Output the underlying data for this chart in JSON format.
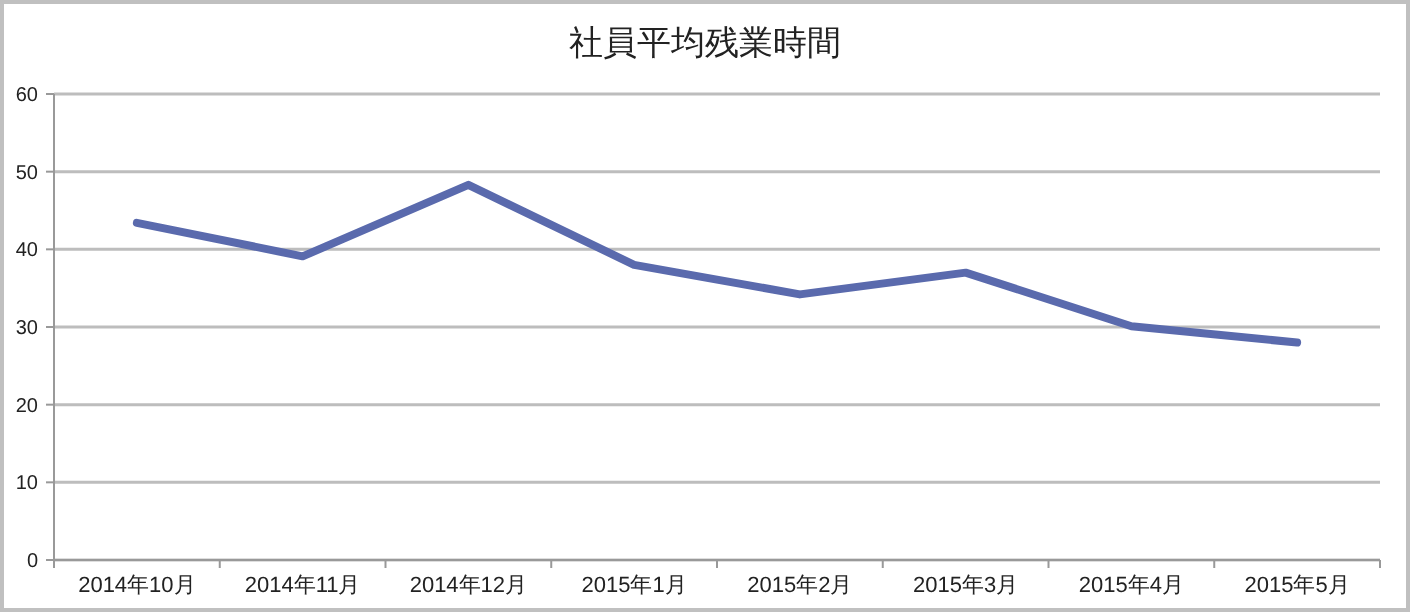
{
  "chart_data": {
    "type": "line",
    "title": "社員平均残業時間",
    "categories": [
      "2014年10月",
      "2014年11月",
      "2014年12月",
      "2015年1月",
      "2015年2月",
      "2015年3月",
      "2015年4月",
      "2015年5月"
    ],
    "series": [
      {
        "color": "#5a6aad",
        "values": [
          43.4,
          39.1,
          48.3,
          38.0,
          34.2,
          37.0,
          30.1,
          28.0
        ]
      }
    ],
    "ylim": [
      0,
      60
    ],
    "yticks": [
      0,
      10,
      20,
      30,
      40,
      50,
      60
    ],
    "grid": "y",
    "marker": "none",
    "line_style": "solid"
  }
}
